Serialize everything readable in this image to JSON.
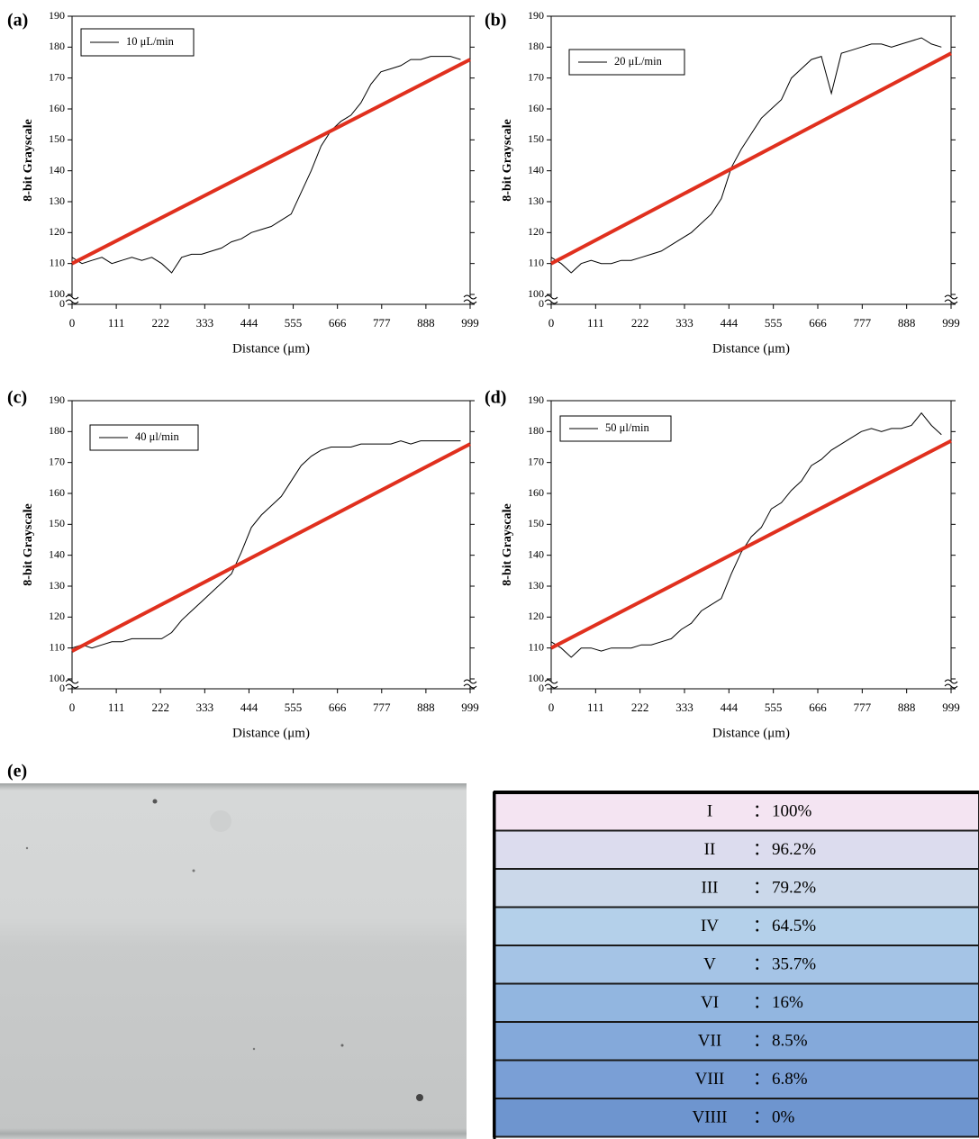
{
  "chart_data": [
    {
      "type": "line",
      "panel_label": "(a)",
      "ylabel": "8-bit Grayscale",
      "xlabel": "Distance (μm)",
      "xlim": [
        0,
        999
      ],
      "xticks": [
        0,
        111,
        222,
        333,
        444,
        555,
        666,
        777,
        888,
        999
      ],
      "ylim": [
        0,
        190
      ],
      "y_break": [
        0,
        100
      ],
      "yticks": [
        0,
        100,
        110,
        120,
        130,
        140,
        150,
        160,
        170,
        180,
        190
      ],
      "legend": "upper left",
      "x": [
        0,
        25,
        50,
        75,
        100,
        125,
        150,
        175,
        200,
        225,
        250,
        275,
        300,
        325,
        350,
        375,
        400,
        425,
        450,
        475,
        500,
        525,
        550,
        575,
        600,
        625,
        650,
        675,
        700,
        725,
        750,
        775,
        800,
        825,
        850,
        875,
        900,
        925,
        950,
        975
      ],
      "series": [
        {
          "name": "10 μL/min",
          "color": "#000000",
          "values": [
            112,
            110,
            111,
            112,
            110,
            111,
            112,
            111,
            112,
            110,
            107,
            112,
            113,
            113,
            114,
            115,
            117,
            118,
            120,
            121,
            122,
            124,
            126,
            133,
            140,
            148,
            153,
            156,
            158,
            162,
            168,
            172,
            173,
            174,
            176,
            176,
            177,
            177,
            177,
            176
          ]
        }
      ],
      "trend_line": {
        "x": [
          0,
          999
        ],
        "values": [
          110,
          176
        ],
        "color": "#e0301e"
      }
    },
    {
      "type": "line",
      "panel_label": "(b)",
      "ylabel": "8-bit Grayscale",
      "xlabel": "Distance (μm)",
      "xlim": [
        0,
        999
      ],
      "xticks": [
        0,
        111,
        222,
        333,
        444,
        555,
        666,
        777,
        888,
        999
      ],
      "ylim": [
        0,
        190
      ],
      "y_break": [
        0,
        100
      ],
      "yticks": [
        0,
        100,
        110,
        120,
        130,
        140,
        150,
        160,
        170,
        180,
        190
      ],
      "legend": "upper left",
      "x": [
        0,
        25,
        50,
        75,
        100,
        125,
        150,
        175,
        200,
        225,
        250,
        275,
        300,
        325,
        350,
        375,
        400,
        425,
        450,
        475,
        500,
        525,
        550,
        575,
        600,
        625,
        650,
        675,
        700,
        725,
        750,
        775,
        800,
        825,
        850,
        875,
        900,
        925,
        950,
        975
      ],
      "series": [
        {
          "name": "20 μL/min",
          "color": "#000000",
          "values": [
            112,
            110,
            107,
            110,
            111,
            110,
            110,
            111,
            111,
            112,
            113,
            114,
            116,
            118,
            120,
            123,
            126,
            131,
            141,
            147,
            152,
            157,
            160,
            163,
            170,
            173,
            176,
            177,
            165,
            178,
            179,
            180,
            181,
            181,
            180,
            181,
            182,
            183,
            181,
            180
          ]
        }
      ],
      "trend_line": {
        "x": [
          0,
          999
        ],
        "values": [
          110,
          178
        ],
        "color": "#e0301e"
      }
    },
    {
      "type": "line",
      "panel_label": "(c)",
      "ylabel": "8-bit Grayscale",
      "xlabel": "Distance (μm)",
      "xlim": [
        0,
        999
      ],
      "xticks": [
        0,
        111,
        222,
        333,
        444,
        555,
        666,
        777,
        888,
        999
      ],
      "ylim": [
        0,
        190
      ],
      "y_break": [
        0,
        100
      ],
      "yticks": [
        0,
        100,
        110,
        120,
        130,
        140,
        150,
        160,
        170,
        180,
        190
      ],
      "legend": "upper left",
      "x": [
        0,
        25,
        50,
        75,
        100,
        125,
        150,
        175,
        200,
        225,
        250,
        275,
        300,
        325,
        350,
        375,
        400,
        425,
        450,
        475,
        500,
        525,
        550,
        575,
        600,
        625,
        650,
        675,
        700,
        725,
        750,
        775,
        800,
        825,
        850,
        875,
        900,
        925,
        950,
        975
      ],
      "series": [
        {
          "name": "40 μl/min",
          "color": "#000000",
          "values": [
            110,
            111,
            110,
            111,
            112,
            112,
            113,
            113,
            113,
            113,
            115,
            119,
            122,
            125,
            128,
            131,
            134,
            141,
            149,
            153,
            156,
            159,
            164,
            169,
            172,
            174,
            175,
            175,
            175,
            176,
            176,
            176,
            176,
            177,
            176,
            177,
            177,
            177,
            177,
            177
          ]
        }
      ],
      "trend_line": {
        "x": [
          0,
          999
        ],
        "values": [
          109,
          176
        ],
        "color": "#e0301e"
      }
    },
    {
      "type": "line",
      "panel_label": "(d)",
      "ylabel": "8-bit Grayscale",
      "xlabel": "Distance (μm)",
      "xlim": [
        0,
        999
      ],
      "xticks": [
        0,
        111,
        222,
        333,
        444,
        555,
        666,
        777,
        888,
        999
      ],
      "ylim": [
        0,
        190
      ],
      "y_break": [
        0,
        100
      ],
      "yticks": [
        0,
        100,
        110,
        120,
        130,
        140,
        150,
        160,
        170,
        180,
        190
      ],
      "legend": "upper left",
      "x": [
        0,
        25,
        50,
        75,
        100,
        125,
        150,
        175,
        200,
        225,
        250,
        275,
        300,
        325,
        350,
        375,
        400,
        425,
        450,
        475,
        500,
        525,
        550,
        575,
        600,
        625,
        650,
        675,
        700,
        725,
        750,
        775,
        800,
        825,
        850,
        875,
        900,
        925,
        950,
        975
      ],
      "series": [
        {
          "name": "50 μl/min",
          "color": "#000000",
          "values": [
            112,
            110,
            107,
            110,
            110,
            109,
            110,
            110,
            110,
            111,
            111,
            112,
            113,
            116,
            118,
            122,
            124,
            126,
            134,
            141,
            146,
            149,
            155,
            157,
            161,
            164,
            169,
            171,
            174,
            176,
            178,
            180,
            181,
            180,
            181,
            181,
            182,
            186,
            182,
            179
          ]
        }
      ],
      "trend_line": {
        "x": [
          0,
          999
        ],
        "values": [
          110,
          177
        ],
        "color": "#e0301e"
      }
    }
  ],
  "image_panel": {
    "label": "(e)"
  },
  "table": {
    "separator": "：",
    "rows": [
      [
        "I",
        "100%"
      ],
      [
        "II",
        "96.2%"
      ],
      [
        "III",
        "79.2%"
      ],
      [
        "IV",
        "64.5%"
      ],
      [
        "V",
        "35.7%"
      ],
      [
        "VI",
        "16%"
      ],
      [
        "VII",
        "8.5%"
      ],
      [
        "VIII",
        "6.8%"
      ],
      [
        "VIIII",
        "0%"
      ]
    ]
  }
}
